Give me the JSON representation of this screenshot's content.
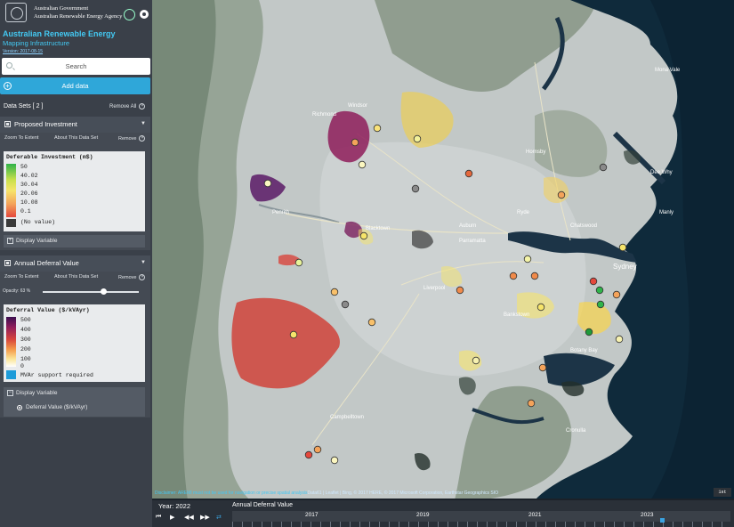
{
  "header": {
    "gov_line1": "Australian Government",
    "gov_line2": "Australian Renewable Energy Agency",
    "title": "Australian Renewable Energy",
    "subtitle": "Mapping Infrastructure",
    "version": "Version: 2017-08-15"
  },
  "search": {
    "placeholder": "Search"
  },
  "add_data": {
    "label": "Add data"
  },
  "datasets": {
    "heading": "Data Sets  [ 2 ]",
    "remove_all": "Remove All"
  },
  "panels": [
    {
      "title": "Proposed Investment",
      "zoom": "Zoom To Extent",
      "about": "About This Data Set",
      "remove": "Remove",
      "legend_title": "Deferable Investment (m$)",
      "legend_items": [
        "50",
        "40.02",
        "30.04",
        "20.06",
        "10.08",
        "0.1",
        "(No value)"
      ],
      "display_variable": "Display Variable"
    },
    {
      "title": "Annual Deferral Value",
      "zoom": "Zoom To Extent",
      "about": "About This Data Set",
      "remove": "Remove",
      "opacity": "Opacity: 63 %",
      "opacity_value": 0.63,
      "legend_title": "Deferral Value ($/kVAyr)",
      "legend_items": [
        "500",
        "400",
        "300",
        "200",
        "100",
        "0",
        "MVAr support required"
      ],
      "display_variable": "Display Variable",
      "variable_option": "Deferral Value ($/kVAyr)"
    }
  ],
  "colors": {
    "accent": "#2fa7d9",
    "brand_text": "#43c8f2",
    "investment_ramp": [
      "#2fb34a",
      "#c9e04c",
      "#f6e46a",
      "#f4a35a",
      "#e4483c"
    ],
    "deferral_ramp": [
      "#3b0e4f",
      "#8e1d5b",
      "#d8453c",
      "#f49a4a",
      "#fbe79b",
      "#ffffff"
    ],
    "no_value": "#3a3a3a",
    "mvar": "#1d9bd9"
  },
  "map": {
    "place_labels": [
      "Sydney",
      "Hornsby",
      "Parramatta",
      "Blacktown",
      "Penrith",
      "Liverpool",
      "Campbelltown",
      "Bankstown",
      "Manly",
      "Cronulla",
      "Richmond",
      "Windsor",
      "Ryde",
      "Chatswood",
      "Mona Vale",
      "Dee Why",
      "Botany Bay",
      "Auburn"
    ],
    "disclaimer_prefix": "Disclaimer: AREMI must not be used for navigation or precise spatial analysis",
    "disclaimer_rest": "Data61 | Leaflet | Bing, © 2017 HERE, © 2017 Microsoft Corporation, Earthstar Geographics SIO",
    "scale": "1st"
  },
  "timeline": {
    "year_label": "Year: 2022",
    "title": "Annual Deferral Value",
    "years": [
      "2017",
      "2019",
      "2021",
      "2023"
    ]
  },
  "icons": [
    "crest-icon",
    "arena-logo-icon",
    "settings-icon",
    "search-icon",
    "plus-icon",
    "close-icon",
    "chevron-down-icon",
    "skip-back-icon",
    "play-icon",
    "step-back-icon",
    "step-forward-icon",
    "loop-icon"
  ]
}
